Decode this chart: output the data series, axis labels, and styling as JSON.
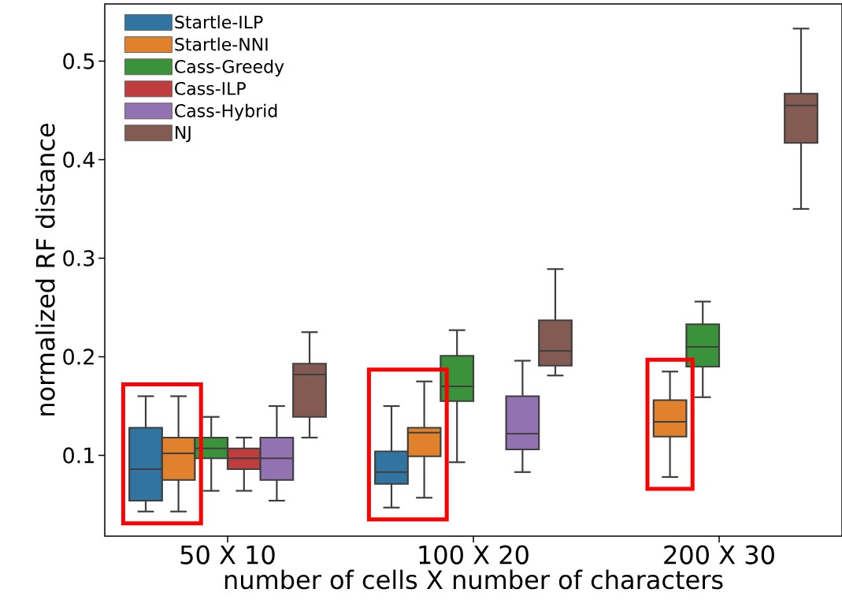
{
  "chart_data": {
    "type": "box",
    "xlabel": "number of cells X number of characters",
    "ylabel": "normalized RF distance",
    "categories": [
      "50 X 10",
      "100 X 20",
      "200 X 30"
    ],
    "ylim": [
      0.018,
      0.558
    ],
    "yticks": [
      0.1,
      0.2,
      0.3,
      0.4,
      0.5
    ],
    "legend": "top left",
    "series": [
      {
        "name": "Startle-ILP",
        "color": "#3274a1",
        "boxes": [
          {
            "low": 0.043,
            "q1": 0.054,
            "median": 0.086,
            "q3": 0.128,
            "high": 0.16
          },
          {
            "low": 0.047,
            "q1": 0.071,
            "median": 0.083,
            "q3": 0.104,
            "high": 0.15
          },
          null
        ]
      },
      {
        "name": "Startle-NNI",
        "color": "#e1812c",
        "boxes": [
          {
            "low": 0.043,
            "q1": 0.075,
            "median": 0.102,
            "q3": 0.118,
            "high": 0.16
          },
          {
            "low": 0.057,
            "q1": 0.099,
            "median": 0.123,
            "q3": 0.128,
            "high": 0.175
          },
          {
            "low": 0.078,
            "q1": 0.119,
            "median": 0.134,
            "q3": 0.156,
            "high": 0.185
          }
        ]
      },
      {
        "name": "Cass-Greedy",
        "color": "#3a923a",
        "boxes": [
          {
            "low": 0.064,
            "q1": 0.097,
            "median": 0.107,
            "q3": 0.118,
            "high": 0.139
          },
          {
            "low": 0.093,
            "q1": 0.155,
            "median": 0.17,
            "q3": 0.201,
            "high": 0.227
          },
          {
            "low": 0.159,
            "q1": 0.19,
            "median": 0.21,
            "q3": 0.233,
            "high": 0.256
          }
        ]
      },
      {
        "name": "Cass-ILP",
        "color": "#c03d3e",
        "boxes": [
          {
            "low": 0.064,
            "q1": 0.086,
            "median": 0.097,
            "q3": 0.107,
            "high": 0.118
          },
          null,
          null
        ]
      },
      {
        "name": "Cass-Hybrid",
        "color": "#9372b2",
        "boxes": [
          {
            "low": 0.054,
            "q1": 0.075,
            "median": 0.097,
            "q3": 0.118,
            "high": 0.15
          },
          {
            "low": 0.083,
            "q1": 0.106,
            "median": 0.122,
            "q3": 0.16,
            "high": 0.196
          },
          null
        ]
      },
      {
        "name": "NJ",
        "color": "#845b53",
        "boxes": [
          {
            "low": 0.118,
            "q1": 0.139,
            "median": 0.182,
            "q3": 0.193,
            "high": 0.225
          },
          {
            "low": 0.181,
            "q1": 0.191,
            "median": 0.206,
            "q3": 0.237,
            "high": 0.289
          },
          {
            "low": 0.35,
            "q1": 0.417,
            "median": 0.455,
            "q3": 0.467,
            "high": 0.533
          }
        ]
      }
    ]
  }
}
